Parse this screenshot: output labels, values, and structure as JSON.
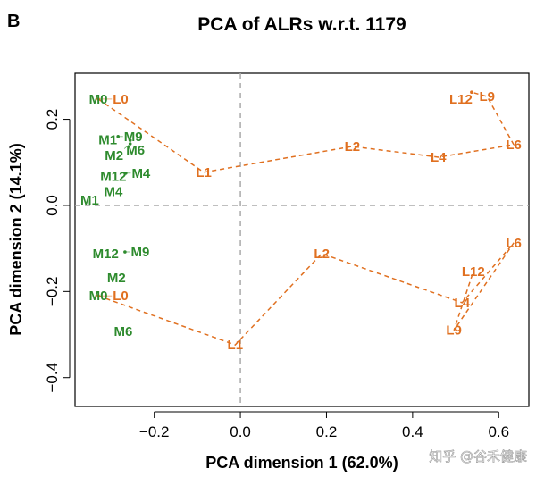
{
  "panel_label": "B",
  "watermark": "知乎 @谷禾健康",
  "chart_data": {
    "type": "scatter",
    "title": "PCA of ALRs w.r.t. 1179",
    "xlabel": "PCA dimension 1 (62.0%)",
    "ylabel": "PCA dimension 2 (14.1%)",
    "xlim": [
      -0.384,
      0.67
    ],
    "ylim": [
      -0.467,
      0.307
    ],
    "xticks": [
      -0.2,
      0.0,
      0.2,
      0.4,
      0.6
    ],
    "yticks": [
      -0.4,
      -0.2,
      0.0,
      0.2
    ],
    "xtick_labels": [
      "−0.2",
      "0.0",
      "0.2",
      "0.4",
      "0.6"
    ],
    "ytick_labels": [
      "−0.4",
      "−0.2",
      "0.0",
      "0.2"
    ],
    "reference_lines": {
      "x": 0,
      "y": 0
    },
    "colors": {
      "M": "#2e8b2e",
      "L": "#e07020"
    },
    "groups": [
      {
        "color_key": "M",
        "connected": false,
        "points": [
          {
            "label": "M0",
            "x": -0.33,
            "y": 0.247
          },
          {
            "label": "M1",
            "x": -0.308,
            "y": 0.152
          },
          {
            "label": "M9",
            "x": -0.284,
            "y": 0.16
          },
          {
            "label": "M6",
            "x": -0.256,
            "y": 0.151
          },
          {
            "label": "M2",
            "x": -0.256,
            "y": 0.143
          },
          {
            "label": "M12",
            "x": -0.295,
            "y": 0.067
          },
          {
            "label": "M4",
            "x": -0.266,
            "y": 0.075
          },
          {
            "label": "M4",
            "x": -0.295,
            "y": 0.032
          },
          {
            "label": "M1",
            "x": -0.35,
            "y": 0.012
          },
          {
            "label": "M12",
            "x": -0.313,
            "y": -0.112
          },
          {
            "label": "M9",
            "x": -0.268,
            "y": -0.108
          },
          {
            "label": "M2",
            "x": -0.288,
            "y": -0.168
          },
          {
            "label": "M0",
            "x": -0.33,
            "y": -0.21
          },
          {
            "label": "M6",
            "x": -0.272,
            "y": -0.293
          }
        ]
      },
      {
        "color_key": "L",
        "connected": true,
        "points": [
          {
            "label": "L0",
            "x": -0.33,
            "y": 0.247
          },
          {
            "label": "L1",
            "x": -0.085,
            "y": 0.077
          },
          {
            "label": "L2",
            "x": 0.26,
            "y": 0.137
          },
          {
            "label": "L4",
            "x": 0.46,
            "y": 0.112
          },
          {
            "label": "L6",
            "x": 0.635,
            "y": 0.141
          },
          {
            "label": "L9",
            "x": 0.573,
            "y": 0.253
          },
          {
            "label": "L12",
            "x": 0.537,
            "y": 0.263
          }
        ]
      },
      {
        "color_key": "L",
        "connected": true,
        "points": [
          {
            "label": "L0",
            "x": -0.33,
            "y": -0.21
          },
          {
            "label": "L1",
            "x": -0.012,
            "y": -0.324
          },
          {
            "label": "L2",
            "x": 0.189,
            "y": -0.112
          },
          {
            "label": "L4",
            "x": 0.515,
            "y": -0.226
          },
          {
            "label": "L6",
            "x": 0.635,
            "y": -0.087
          },
          {
            "label": "L9",
            "x": 0.496,
            "y": -0.29
          },
          {
            "label": "L12",
            "x": 0.541,
            "y": -0.154
          }
        ]
      }
    ]
  }
}
